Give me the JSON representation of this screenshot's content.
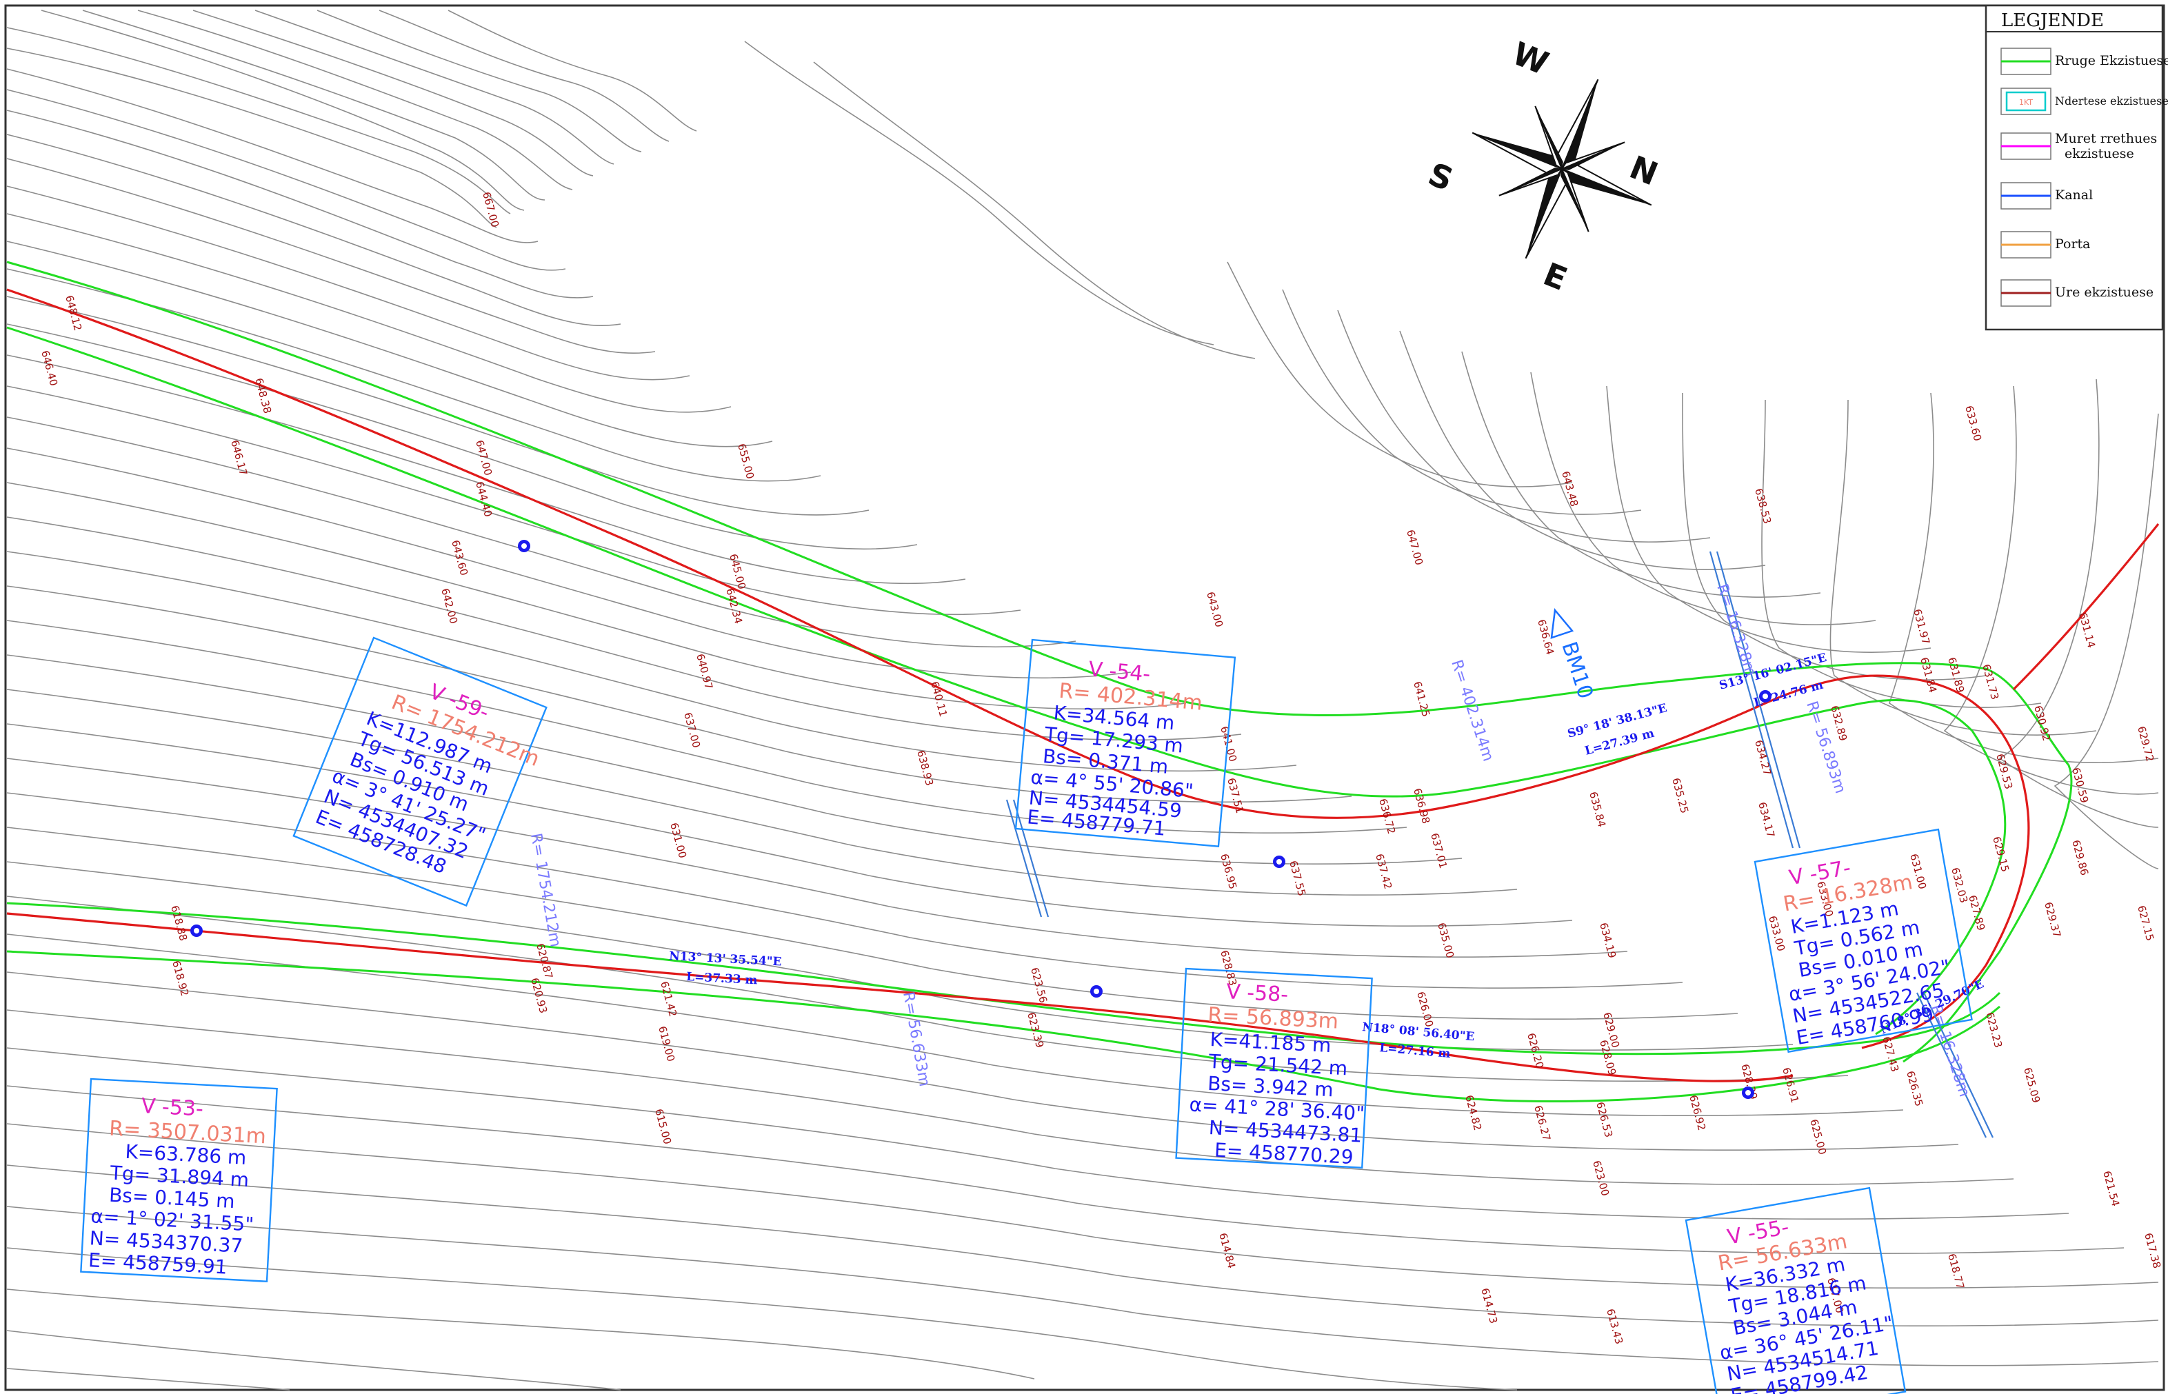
{
  "legend": {
    "title": "LEGJENDE",
    "items": [
      {
        "label": "Rruge Ekzistuese",
        "color": "#22dd22"
      },
      {
        "label": "Ndertese ekzistuese",
        "color": "#00cccc",
        "swatch_text": "1KT"
      },
      {
        "label": "Muret rrethues",
        "label2": "ekzistuese",
        "color": "#ff00ff"
      },
      {
        "label": "Kanal",
        "color": "#1a4fff"
      },
      {
        "label": "Porta",
        "color": "#f0a040"
      },
      {
        "label": "Ure ekzistuese",
        "color": "#a02020"
      }
    ]
  },
  "compass": {
    "w": "W",
    "n": "N",
    "s": "S",
    "e": "E"
  },
  "benchmark": "BM10",
  "curves": [
    {
      "v": "V -59-",
      "r": "R= 1754.212m",
      "k": "K=112.987 m",
      "tg": "Tg= 56.513 m",
      "bs": "Bs= 0.910 m",
      "alpha": "α= 3° 41' 25.27\"",
      "n": "N= 4534407.32",
      "e": "E= 458728.48"
    },
    {
      "v": "V -54-",
      "r": "R= 402.314m",
      "k": "K=34.564 m",
      "tg": "Tg= 17.293 m",
      "bs": "Bs= 0.371 m",
      "alpha": "α= 4° 55' 20.86\"",
      "n": "N= 4534454.59",
      "e": "E= 458779.71"
    },
    {
      "v": "V -58-",
      "r": "R= 56.893m",
      "k": "K=41.185 m",
      "tg": "Tg= 21.542 m",
      "bs": "Bs= 3.942 m",
      "alpha": "α= 41° 28' 36.40\"",
      "n": "N= 4534473.81",
      "e": "E= 458770.29"
    },
    {
      "v": "V -57-",
      "r": "R= 16.328m",
      "k": "K=1.123 m",
      "tg": "Tg= 0.562 m",
      "bs": "Bs= 0.010 m",
      "alpha": "α= 3° 56' 24.02\"",
      "n": "N= 4534522.65",
      "e": "E= 458760.99"
    },
    {
      "v": "V -53-",
      "r": "R= 3507.031m",
      "k": "K=63.786 m",
      "tg": "Tg= 31.894 m",
      "bs": "Bs= 0.145 m",
      "alpha": "α= 1° 02' 31.55\"",
      "n": "N= 4534370.37",
      "e": "E= 458759.91"
    },
    {
      "v": "V -55-",
      "r": "R= 56.633m",
      "k": "K=36.332 m",
      "tg": "Tg= 18.816 m",
      "bs": "Bs= 3.044 m",
      "alpha": "α= 36° 45' 26.11\"",
      "n": "N= 4534514.71",
      "e": "E= 458799.42"
    }
  ],
  "azimuths": [
    {
      "dir": "N13° 13' 35.54\"E",
      "len": "L=37.33 m"
    },
    {
      "dir": "N18° 08' 56.40\"E",
      "len": "L=27.16 m"
    },
    {
      "dir": "S9° 18' 38.13\"E",
      "len": "L=27.39 m"
    },
    {
      "dir": "S13° 16' 02.15\"E",
      "len": "L=24.76 m"
    },
    {
      "dir": "N18° 36' 29.70\"E",
      "len": ""
    }
  ],
  "radius_labels": [
    "R= 16.328m",
    "R= 56.893m",
    "R= 402.314m",
    "R= 1754.212m",
    "R= 56.633m",
    "R= 16.328m"
  ],
  "elevations": [
    "667.00",
    "648.12",
    "646.40",
    "648.38",
    "646.17",
    "647.00",
    "644.40",
    "655.00",
    "643.60",
    "642.00",
    "645.00",
    "642.34",
    "640.97",
    "637.00",
    "640.11",
    "638.93",
    "631.00",
    "641.00",
    "637.51",
    "643.00",
    "647.00",
    "643.48",
    "638.53",
    "641.25",
    "636.64",
    "636.98",
    "637.01",
    "637.42",
    "636.72",
    "634.27",
    "632.89",
    "634.17",
    "631.97",
    "631.84",
    "631.89",
    "631.73",
    "631.14",
    "630.92",
    "629.72",
    "630.59",
    "629.86",
    "629.37",
    "627.15",
    "633.60",
    "635.84",
    "635.25",
    "634.19",
    "635.00",
    "633.00",
    "631.00",
    "629.53",
    "629.15",
    "627.89",
    "623.23",
    "625.09",
    "621.54",
    "617.38",
    "618.77",
    "618.88",
    "618.92",
    "620.87",
    "620.93",
    "621.42",
    "619.00",
    "615.00",
    "623.56",
    "623.39",
    "628.83",
    "626.00",
    "626.20",
    "624.82",
    "626.27",
    "626.53",
    "626.92",
    "628.39",
    "626.91",
    "625.00",
    "623.00",
    "627.43",
    "626.35",
    "614.84",
    "614.73",
    "613.43",
    "617.00",
    "629.00",
    "628.09",
    "633.00",
    "632.03",
    "636.95",
    "637.55"
  ]
}
